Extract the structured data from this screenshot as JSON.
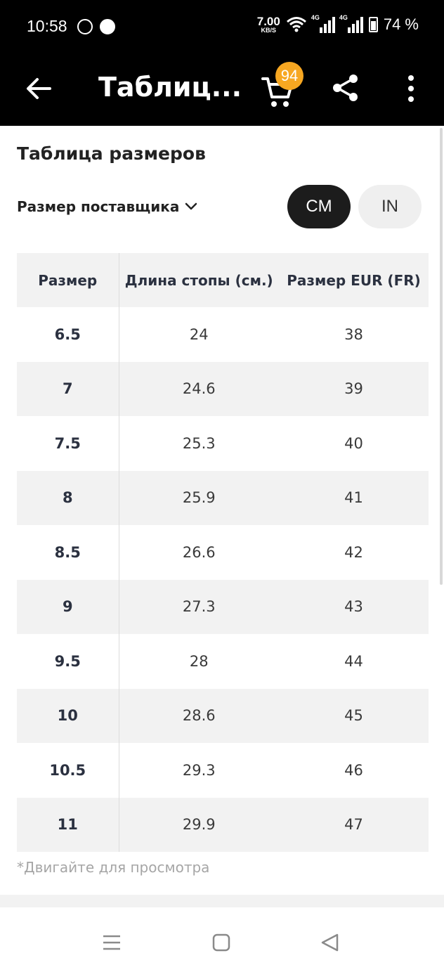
{
  "status_bar": {
    "time": "10:58",
    "speed_value": "7.00",
    "speed_unit": "KB/S",
    "signal_1": "4G",
    "signal_2": "4G",
    "battery": "74 %"
  },
  "app_bar": {
    "title": "Таблиц...",
    "cart_count": "94"
  },
  "main": {
    "heading": "Таблица размеров",
    "size_selector_label": "Размер поставщика",
    "units": [
      {
        "label": "CM",
        "selected": true
      },
      {
        "label": "IN",
        "selected": false
      }
    ]
  },
  "table": {
    "headers": [
      "Размер",
      "Длина стопы (см.)",
      "Размер EUR (FR)"
    ],
    "rows": [
      [
        "6.5",
        "24",
        "38"
      ],
      [
        "7",
        "24.6",
        "39"
      ],
      [
        "7.5",
        "25.3",
        "40"
      ],
      [
        "8",
        "25.9",
        "41"
      ],
      [
        "8.5",
        "26.6",
        "42"
      ],
      [
        "9",
        "27.3",
        "43"
      ],
      [
        "9.5",
        "28",
        "44"
      ],
      [
        "10",
        "28.6",
        "45"
      ],
      [
        "10.5",
        "29.3",
        "46"
      ],
      [
        "11",
        "29.9",
        "47"
      ]
    ]
  },
  "hint": "*Двигайте для просмотра",
  "colors": {
    "badge": "#f7a721",
    "selected_unit": "#1c1c1c",
    "row_shade": "#f2f2f2"
  },
  "icons": {
    "back": "arrow-left-icon",
    "cart": "cart-icon",
    "share": "share-icon",
    "more": "more-vert-icon"
  }
}
